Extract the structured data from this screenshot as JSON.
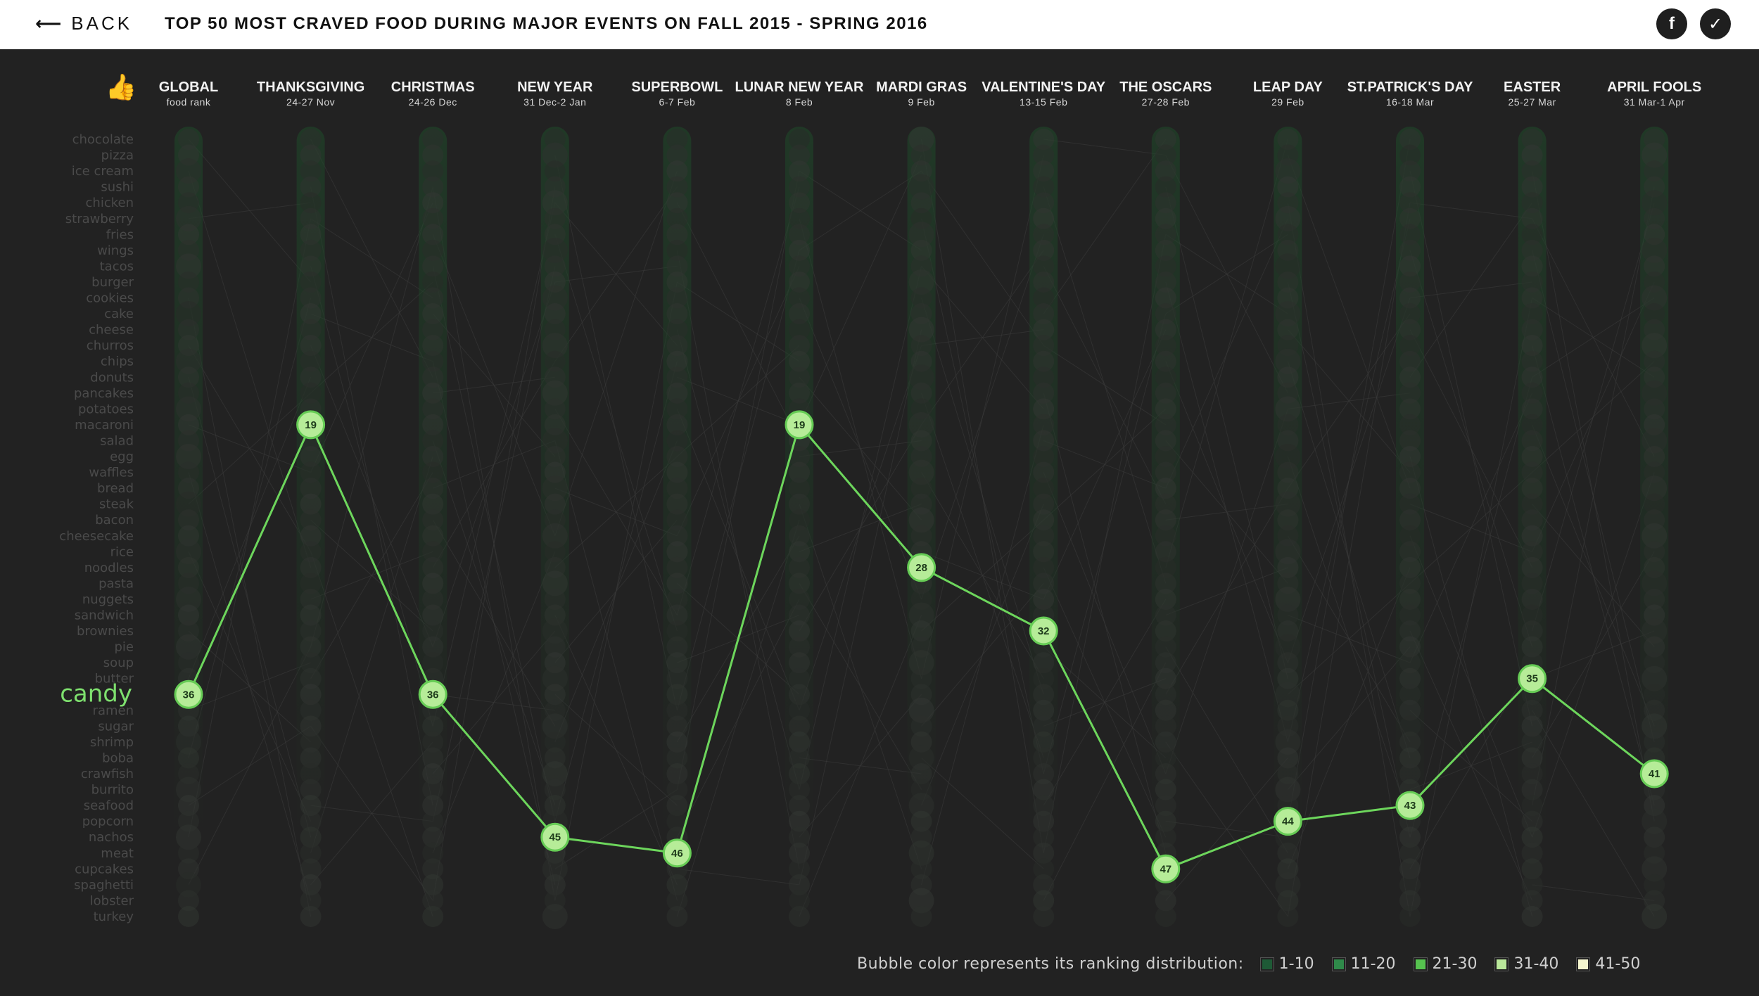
{
  "header": {
    "back_label": "BACK",
    "back_icon": "arrow-left-icon",
    "title": "TOP 50 MOST CRAVED FOOD DURING MAJOR EVENTS ON FALL 2015 - SPRING 2016",
    "facebook_icon": "f",
    "twitter_icon": "✓"
  },
  "chart_data": {
    "type": "scatter",
    "title": "TOP 50 MOST CRAVED FOOD DURING MAJOR EVENTS ON FALL 2015 - SPRING 2016",
    "categories": [
      {
        "name": "GLOBAL",
        "sub": "food rank"
      },
      {
        "name": "THANKSGIVING",
        "sub": "24-27 Nov"
      },
      {
        "name": "CHRISTMAS",
        "sub": "24-26 Dec"
      },
      {
        "name": "NEW YEAR",
        "sub": "31 Dec-2 Jan"
      },
      {
        "name": "SUPERBOWL",
        "sub": "6-7 Feb"
      },
      {
        "name": "LUNAR NEW YEAR",
        "sub": "8 Feb"
      },
      {
        "name": "MARDI GRAS",
        "sub": "9 Feb"
      },
      {
        "name": "VALENTINE'S DAY",
        "sub": "13-15 Feb"
      },
      {
        "name": "THE OSCARS",
        "sub": "27-28 Feb"
      },
      {
        "name": "LEAP DAY",
        "sub": "29 Feb"
      },
      {
        "name": "ST.PATRICK'S DAY",
        "sub": "16-18 Mar"
      },
      {
        "name": "EASTER",
        "sub": "25-27 Mar"
      },
      {
        "name": "APRIL FOOLS",
        "sub": "31 Mar-1 Apr"
      }
    ],
    "foods": [
      "chocolate",
      "pizza",
      "ice cream",
      "sushi",
      "chicken",
      "strawberry",
      "fries",
      "wings",
      "tacos",
      "burger",
      "cookies",
      "cake",
      "cheese",
      "churros",
      "chips",
      "donuts",
      "pancakes",
      "potatoes",
      "macaroni",
      "salad",
      "egg",
      "waffles",
      "bread",
      "steak",
      "bacon",
      "cheesecake",
      "rice",
      "noodles",
      "pasta",
      "nuggets",
      "sandwich",
      "brownies",
      "pie",
      "soup",
      "butter",
      "candy",
      "ramen",
      "sugar",
      "shrimp",
      "boba",
      "crawfish",
      "burrito",
      "seafood",
      "popcorn",
      "nachos",
      "meat",
      "cupcakes",
      "spaghetti",
      "lobster",
      "turkey"
    ],
    "selected_food": "candy",
    "series": [
      {
        "name": "candy",
        "values": [
          36,
          19,
          36,
          45,
          46,
          19,
          28,
          32,
          47,
          44,
          43,
          35,
          41
        ]
      }
    ],
    "ylim": [
      1,
      50
    ],
    "legend": {
      "label": "Bubble color represents its ranking distribution:",
      "items": [
        {
          "label": "1-10",
          "color": "#1e5a36"
        },
        {
          "label": "11-20",
          "color": "#2f8a4a"
        },
        {
          "label": "21-30",
          "color": "#56c24f"
        },
        {
          "label": "31-40",
          "color": "#b9e79a"
        },
        {
          "label": "41-50",
          "color": "#f5f6cf"
        }
      ]
    },
    "colors": {
      "line": "#6dd65c",
      "marker_fill": "#b6ec98",
      "marker_stroke": "#66cc55",
      "selected_label": "#7ee06e",
      "column_bubble": "#2c2c2c"
    }
  }
}
